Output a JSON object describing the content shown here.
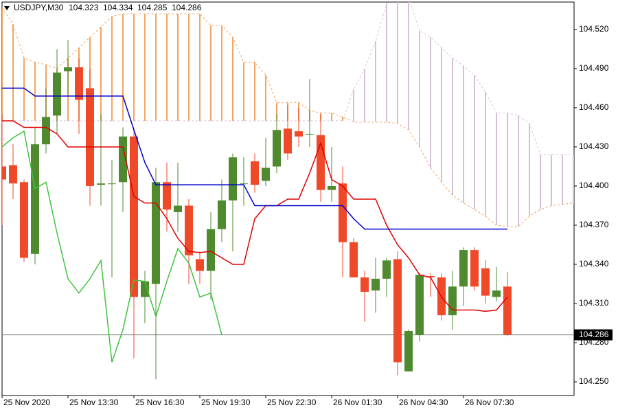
{
  "chart_data": {
    "type": "candlestick",
    "title": "USDJPY,M30",
    "header_values": [
      104.323,
      104.334,
      104.285,
      104.286
    ],
    "categories": [
      "25 Nov 2020",
      null,
      null,
      null,
      null,
      null,
      "25 Nov 13:30",
      null,
      null,
      null,
      null,
      null,
      "25 Nov 16:30",
      null,
      null,
      null,
      null,
      null,
      "25 Nov 19:30",
      null,
      null,
      null,
      null,
      null,
      "25 Nov 22:30",
      null,
      null,
      null,
      null,
      null,
      "26 Nov 01:30",
      null,
      null,
      null,
      null,
      null,
      "26 Nov 04:30",
      null,
      null,
      null,
      null,
      null,
      "26 Nov 07:30",
      null,
      null,
      null,
      null,
      null,
      null,
      null,
      null,
      null,
      null
    ],
    "open": [
      104.415,
      104.416,
      104.403,
      104.348,
      104.432,
      104.454,
      104.488,
      104.491,
      104.475,
      104.401,
      104.402,
      104.403,
      104.438,
      104.315,
      104.325,
      104.403,
      104.38,
      104.385,
      104.344,
      104.335,
      104.367,
      104.389,
      104.402,
      104.419,
      104.404,
      104.415,
      104.444,
      104.442,
      104.44,
      104.439,
      104.397,
      104.402,
      104.357,
      104.33,
      104.32,
      104.329,
      104.344,
      104.258,
      104.286,
      104.331,
      104.33,
      104.301,
      104.323,
      104.351,
      104.337,
      104.315,
      104.323,
      null,
      null,
      null,
      null,
      null,
      null
    ],
    "high": [
      104.455,
      104.432,
      104.405,
      104.445,
      104.475,
      104.505,
      104.512,
      104.498,
      104.49,
      104.455,
      104.42,
      104.445,
      104.445,
      104.335,
      104.414,
      104.418,
      104.418,
      104.39,
      104.35,
      104.38,
      104.405,
      104.425,
      104.422,
      104.425,
      104.437,
      104.455,
      104.462,
      104.46,
      104.482,
      104.455,
      104.43,
      104.415,
      104.36,
      104.335,
      104.345,
      104.345,
      104.35,
      104.29,
      104.333,
      104.333,
      104.333,
      104.335,
      104.353,
      104.353,
      104.343,
      104.338,
      104.334,
      null,
      null,
      null,
      null,
      null,
      null
    ],
    "low": [
      104.37,
      104.39,
      104.342,
      104.34,
      104.425,
      104.44,
      104.47,
      104.44,
      104.385,
      104.385,
      104.33,
      104.38,
      104.268,
      104.295,
      104.252,
      104.365,
      104.365,
      104.325,
      104.325,
      104.313,
      104.357,
      104.35,
      104.385,
      104.395,
      104.4,
      104.41,
      104.42,
      104.43,
      104.43,
      104.388,
      104.388,
      104.33,
      104.33,
      104.296,
      104.303,
      104.315,
      104.255,
      104.258,
      104.281,
      104.315,
      104.297,
      104.29,
      104.308,
      104.32,
      104.31,
      104.312,
      104.285,
      null,
      null,
      null,
      null,
      null,
      null
    ],
    "close": [
      104.405,
      104.402,
      104.345,
      104.432,
      104.453,
      104.487,
      104.491,
      104.466,
      104.4,
      104.402,
      104.402,
      104.438,
      104.315,
      104.327,
      104.403,
      104.382,
      104.385,
      104.347,
      104.335,
      104.367,
      104.389,
      104.422,
      104.402,
      104.401,
      104.414,
      104.443,
      104.425,
      104.438,
      104.44,
      104.397,
      104.4,
      104.357,
      104.33,
      104.319,
      104.329,
      104.343,
      104.265,
      104.289,
      104.332,
      104.33,
      104.301,
      104.323,
      104.351,
      104.323,
      104.316,
      104.32,
      104.286,
      null,
      null,
      null,
      null,
      null,
      null
    ],
    "up_color": "#4f8a2e",
    "down_color": "#f0492a",
    "overlays": [
      {
        "color": "#e00000",
        "values": [
          104.45,
          104.45,
          104.445,
          104.445,
          104.445,
          104.44,
          104.43,
          104.43,
          104.43,
          104.43,
          104.43,
          104.43,
          104.392,
          104.387,
          104.387,
          104.375,
          104.36,
          104.35,
          104.349,
          104.35,
          104.345,
          104.34,
          104.34,
          104.375,
          104.385,
          104.385,
          104.39,
          104.39,
          104.41,
          104.433,
          104.405,
          104.4,
          104.39,
          104.39,
          104.39,
          104.37,
          104.355,
          104.345,
          104.332,
          104.33,
          104.315,
          104.305,
          104.305,
          104.305,
          104.304,
          104.305,
          104.315,
          null,
          null,
          null,
          null,
          null,
          null
        ]
      },
      {
        "color": "#0000c8",
        "values": [
          104.475,
          104.475,
          104.475,
          104.469,
          104.469,
          104.469,
          104.469,
          104.469,
          104.469,
          104.469,
          104.469,
          104.469,
          104.443,
          104.418,
          104.401,
          104.401,
          104.401,
          104.401,
          104.401,
          104.401,
          104.401,
          104.401,
          104.401,
          104.385,
          104.385,
          104.385,
          104.385,
          104.385,
          104.385,
          104.385,
          104.385,
          104.385,
          104.375,
          104.367,
          104.367,
          104.367,
          104.367,
          104.367,
          104.367,
          104.367,
          104.367,
          104.367,
          104.367,
          104.367,
          104.367,
          104.367,
          104.367,
          null,
          null,
          null,
          null,
          null,
          null
        ]
      },
      {
        "color": "#3ec43e",
        "values": [
          104.43,
          104.437,
          104.442,
          104.398,
          104.403,
          104.364,
          104.329,
          104.318,
          104.329,
          104.343,
          104.265,
          104.29,
          104.328,
          104.327,
          104.3,
          104.327,
          104.352,
          104.341,
          104.315,
          104.318,
          104.286,
          null,
          null,
          null,
          null,
          null,
          null,
          null,
          null,
          null,
          null,
          null,
          null,
          null,
          null,
          null,
          null,
          null,
          null,
          null,
          null,
          null,
          null,
          null,
          null,
          null,
          null,
          null,
          null,
          null,
          null,
          null,
          null
        ]
      }
    ],
    "cloud": {
      "span_a": [
        104.537,
        104.524,
        104.498,
        104.495,
        104.493,
        104.49,
        104.498,
        104.506,
        104.514,
        104.522,
        104.53,
        104.532,
        104.532,
        104.532,
        104.532,
        104.532,
        104.532,
        104.532,
        104.532,
        104.523,
        104.523,
        104.514,
        104.495,
        104.495,
        104.485,
        104.464,
        104.464,
        104.464,
        104.458,
        104.456,
        104.456,
        104.453,
        104.449,
        104.449,
        104.449,
        104.449,
        104.448,
        104.443,
        104.43,
        104.414,
        104.403,
        104.393,
        104.387,
        104.382,
        104.377,
        104.37,
        104.369,
        104.369,
        104.377,
        104.382,
        104.385,
        104.386,
        104.387
      ],
      "span_b": [
        104.45,
        104.45,
        104.45,
        104.45,
        104.45,
        104.45,
        104.45,
        104.45,
        104.45,
        104.45,
        104.45,
        104.45,
        104.45,
        104.45,
        104.45,
        104.45,
        104.45,
        104.45,
        104.45,
        104.45,
        104.45,
        104.45,
        104.45,
        104.45,
        104.45,
        104.45,
        104.45,
        104.45,
        104.45,
        104.45,
        104.45,
        104.45,
        104.474,
        104.49,
        104.511,
        104.54,
        104.545,
        104.545,
        104.519,
        104.514,
        104.506,
        104.498,
        104.492,
        104.485,
        104.472,
        104.456,
        104.456,
        104.454,
        104.448,
        104.424,
        104.424,
        104.424,
        104.424
      ],
      "up_color": "#f4a460",
      "down_color": "#d8bfd8"
    },
    "current_price": 104.286,
    "current_price_color": "#708070",
    "ylim": [
      104.2395,
      104.541
    ],
    "yticks": [
      {
        "value": 104.25,
        "label": "104.250"
      },
      {
        "value": 104.28,
        "label": "104.280"
      },
      {
        "value": 104.31,
        "label": "104.310"
      },
      {
        "value": 104.34,
        "label": "104.340"
      },
      {
        "value": 104.37,
        "label": "104.370"
      },
      {
        "value": 104.4,
        "label": "104.400"
      },
      {
        "value": 104.43,
        "label": "104.430"
      },
      {
        "value": 104.46,
        "label": "104.460"
      },
      {
        "value": 104.49,
        "label": "104.490"
      },
      {
        "value": 104.52,
        "label": "104.520"
      }
    ]
  }
}
